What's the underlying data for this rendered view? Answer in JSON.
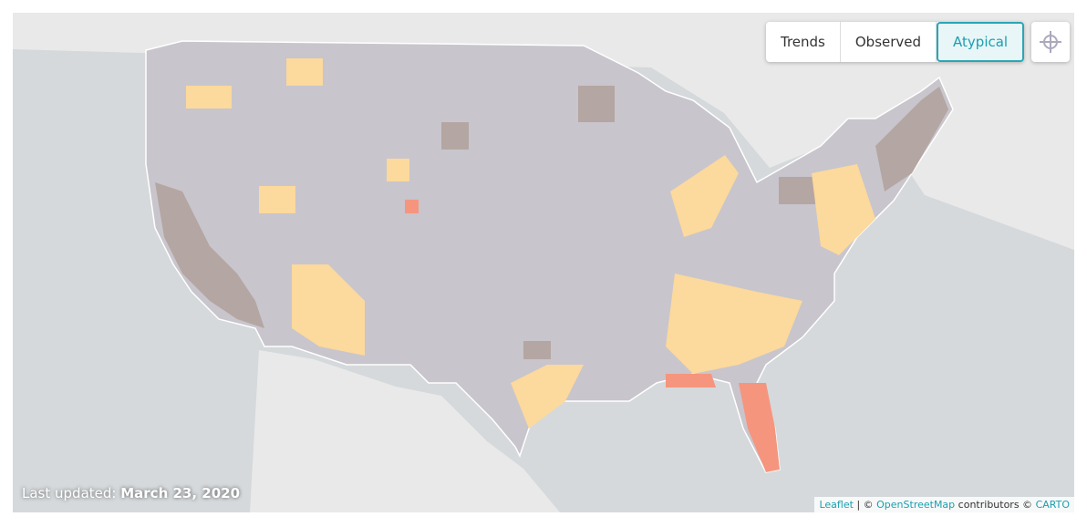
{
  "controls": {
    "tabs": [
      "Trends",
      "Observed",
      "Atypical"
    ]
  },
  "footer": {
    "updated_label": "Last updated:",
    "updated_date": "March 23, 2020"
  },
  "attribution": {
    "leaflet": "Leaflet",
    "sep": "| ©",
    "osm": "OpenStreetMap",
    "contributors": "contributors ©",
    "carto": "CARTO"
  }
}
